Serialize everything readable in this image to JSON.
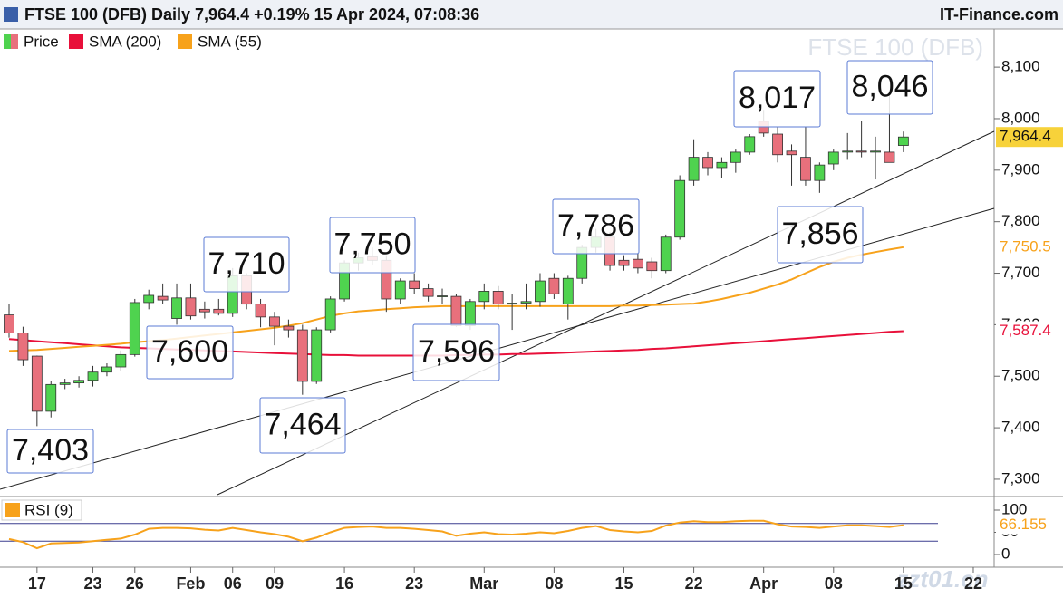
{
  "chart_data": {
    "type": "candlestick",
    "title": "FTSE 100 (DFB) Daily 7,964.4 +0.19% 15 Apr 2024, 07:08:36",
    "source": "IT-Finance.com",
    "watermark": "FTSE 100 (DFB)",
    "site_watermark": "zzt01.cn",
    "price_label": "7,964.4",
    "categories": [
      "",
      "",
      "17",
      null,
      null,
      null,
      "23",
      null,
      null,
      "26",
      null,
      null,
      null,
      "Feb",
      null,
      null,
      "06",
      null,
      null,
      "09",
      null,
      null,
      null,
      null,
      "16",
      null,
      null,
      null,
      null,
      "23",
      null,
      null,
      null,
      null,
      "Mar",
      null,
      null,
      null,
      null,
      "08",
      null,
      null,
      null,
      null,
      "15",
      null,
      null,
      null,
      null,
      "22",
      null,
      null,
      null,
      null,
      "Apr",
      null,
      null,
      null,
      null,
      "08",
      null,
      null,
      null,
      null,
      "15",
      null,
      null,
      null,
      null,
      "22"
    ],
    "ylim": [
      7270,
      8160
    ],
    "yticks": [
      {
        "value": 7300,
        "label": "7,300"
      },
      {
        "value": 7400,
        "label": "7,400"
      },
      {
        "value": 7500,
        "label": "7,500"
      },
      {
        "value": 7600,
        "label": "7,600"
      },
      {
        "value": 7700,
        "label": "7,700"
      },
      {
        "value": 7800,
        "label": "7,800"
      },
      {
        "value": 7900,
        "label": "7,900"
      },
      {
        "value": 8000,
        "label": "8,000"
      },
      {
        "value": 8100,
        "label": "8,100"
      }
    ],
    "series": [
      {
        "name": "Price",
        "type": "candlestick",
        "color": "#4fd34f",
        "color_down": "#e8707c",
        "open": [
          7619,
          7584,
          7539,
          7432,
          7484,
          7487,
          7492,
          7508,
          7518,
          7542,
          7643,
          7655,
          7612,
          7652,
          7630,
          7630,
          7622,
          7695,
          7640,
          7615,
          7597,
          7590,
          7490,
          7590,
          7650,
          7720,
          7732,
          7725,
          7650,
          7685,
          7670,
          7655,
          7655,
          7598,
          7645,
          7665,
          7640,
          7642,
          7645,
          7690,
          7640,
          7690,
          7750,
          7770,
          7725,
          7727,
          7722,
          7705,
          7770,
          7880,
          7925,
          7905,
          7915,
          7935,
          7995,
          7970,
          7937,
          7925,
          7880,
          7912,
          7935,
          7937,
          7935,
          7935,
          7948,
          null,
          null,
          null,
          null,
          null
        ],
        "high": [
          7640,
          7596,
          7540,
          7490,
          7495,
          7500,
          7520,
          7525,
          7550,
          7650,
          7668,
          7680,
          7680,
          7680,
          7645,
          7650,
          7710,
          7700,
          7650,
          7625,
          7610,
          7600,
          7595,
          7655,
          7725,
          7740,
          7750,
          7735,
          7690,
          7700,
          7680,
          7670,
          7660,
          7650,
          7680,
          7675,
          7660,
          7680,
          7700,
          7700,
          7695,
          7755,
          7786,
          7780,
          7735,
          7740,
          7730,
          7775,
          7890,
          7960,
          7935,
          7925,
          7940,
          7970,
          8017,
          7985,
          7950,
          7985,
          7915,
          7940,
          7972,
          7995,
          7965,
          8046,
          7975,
          null,
          null,
          null,
          null,
          null
        ],
        "low": [
          7575,
          7520,
          7403,
          7420,
          7475,
          7478,
          7480,
          7500,
          7510,
          7538,
          7630,
          7640,
          7600,
          7610,
          7612,
          7618,
          7615,
          7630,
          7595,
          7560,
          7575,
          7464,
          7485,
          7585,
          7645,
          7705,
          7715,
          7625,
          7640,
          7660,
          7645,
          7640,
          7596,
          7590,
          7630,
          7630,
          7590,
          7630,
          7635,
          7650,
          7610,
          7680,
          7740,
          7705,
          7705,
          7700,
          7690,
          7700,
          7765,
          7870,
          7890,
          7885,
          7895,
          7930,
          7965,
          7915,
          7870,
          7870,
          7856,
          7900,
          7920,
          7925,
          7882,
          7920,
          7935,
          null,
          null,
          null,
          null,
          null
        ],
        "close": [
          7584,
          7532,
          7432,
          7484,
          7487,
          7492,
          7508,
          7518,
          7542,
          7643,
          7657,
          7648,
          7652,
          7617,
          7625,
          7622,
          7695,
          7640,
          7615,
          7597,
          7590,
          7490,
          7590,
          7650,
          7720,
          7730,
          7725,
          7650,
          7685,
          7670,
          7655,
          7656,
          7598,
          7645,
          7665,
          7640,
          7642,
          7645,
          7685,
          7660,
          7690,
          7750,
          7770,
          7715,
          7715,
          7710,
          7705,
          7770,
          7880,
          7925,
          7905,
          7915,
          7935,
          7965,
          7972,
          7930,
          7930,
          7880,
          7910,
          7935,
          7937,
          7935,
          7937,
          7915,
          7964.4,
          null,
          null,
          null,
          null,
          null
        ]
      },
      {
        "name": "SMA (200)",
        "type": "line",
        "color": "#e8103a",
        "last_value_label": "7,587.4",
        "values": [
          7572,
          7570,
          7568,
          7566,
          7564,
          7562,
          7560,
          7558,
          7556,
          7555,
          7554,
          7553,
          7552,
          7551,
          7550,
          7549,
          7548,
          7547,
          7546,
          7545,
          7544,
          7543,
          7542,
          7541,
          7541,
          7540,
          7540,
          7540,
          7540,
          7540,
          7540,
          7540,
          7541,
          7541,
          7542,
          7542,
          7543,
          7543,
          7544,
          7545,
          7546,
          7547,
          7548,
          7549,
          7550,
          7551,
          7553,
          7554,
          7556,
          7558,
          7560,
          7562,
          7564,
          7566,
          7568,
          7570,
          7572,
          7574,
          7576,
          7578,
          7580,
          7582,
          7584,
          7586,
          7587.4,
          null,
          null,
          null,
          null,
          null
        ]
      },
      {
        "name": "SMA (55)",
        "type": "line",
        "color": "#f7a21b",
        "last_value_label": "7,750.5",
        "values": [
          7549,
          7550,
          7551,
          7553,
          7555,
          7557,
          7559,
          7561,
          7563,
          7566,
          7568,
          7570,
          7573,
          7576,
          7579,
          7582,
          7585,
          7588,
          7591,
          7594,
          7598,
          7603,
          7610,
          7617,
          7622,
          7626,
          7628,
          7630,
          7632,
          7634,
          7635,
          7636,
          7636,
          7636,
          7636,
          7636,
          7636,
          7636,
          7636,
          7636,
          7636,
          7636,
          7636,
          7636,
          7637,
          7637,
          7638,
          7639,
          7640,
          7641,
          7645,
          7650,
          7656,
          7662,
          7670,
          7678,
          7688,
          7700,
          7712,
          7722,
          7730,
          7736,
          7741,
          7746,
          7750.5,
          null,
          null,
          null,
          null,
          null
        ]
      }
    ],
    "annotations": [
      "7,403",
      "7,600",
      "7,464",
      "7,710",
      "7,750",
      "7,596",
      "7,786",
      "8,017",
      "8,046",
      "7,856"
    ],
    "rsi": {
      "name": "RSI (9)",
      "color": "#f7a21b",
      "ylim": [
        0,
        100
      ],
      "yticks": [
        0,
        50,
        100
      ],
      "levels": [
        30,
        70
      ],
      "last_value_label": "66.155",
      "values": [
        35,
        28,
        14,
        25,
        26,
        27,
        30,
        33,
        36,
        45,
        58,
        60,
        60,
        59,
        56,
        54,
        60,
        55,
        50,
        46,
        40,
        30,
        38,
        50,
        60,
        62,
        63,
        60,
        60,
        58,
        55,
        52,
        42,
        47,
        50,
        46,
        45,
        47,
        50,
        48,
        53,
        60,
        64,
        55,
        52,
        50,
        53,
        65,
        72,
        75,
        73,
        73,
        75,
        76,
        76,
        68,
        63,
        62,
        60,
        63,
        66,
        66,
        64,
        62,
        66.155,
        null,
        null,
        null,
        null,
        null
      ]
    }
  }
}
